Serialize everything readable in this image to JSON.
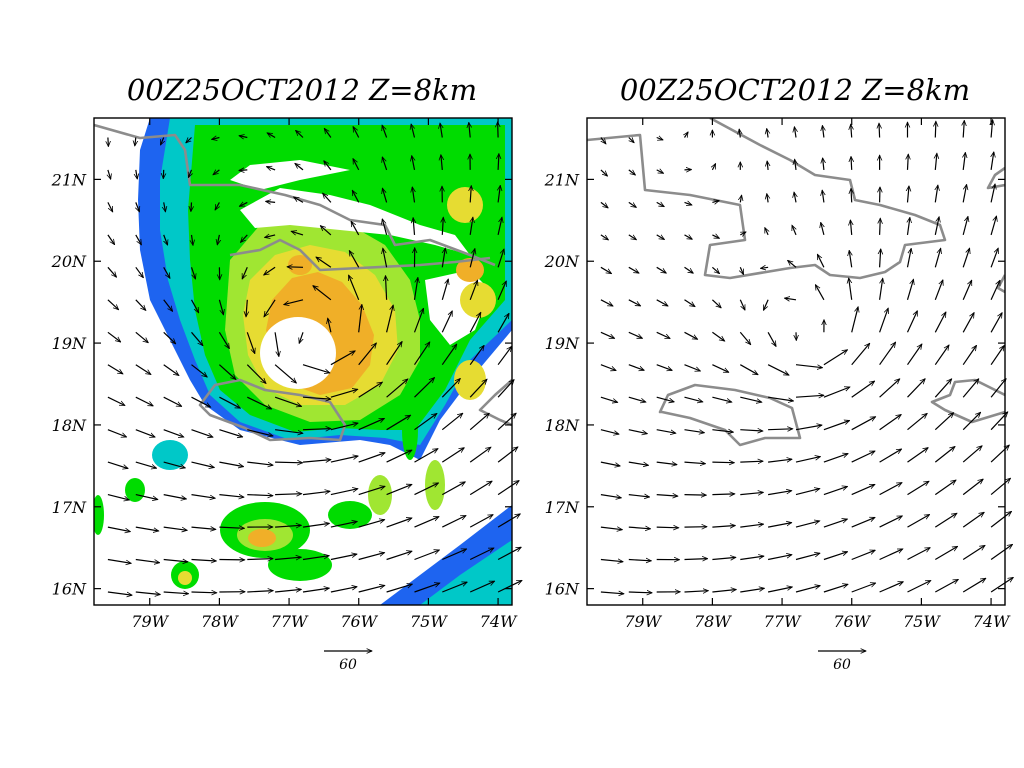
{
  "panels": [
    {
      "id": "left",
      "title": "00Z25OCT2012 Z=8km",
      "shows_shading": true,
      "reference_vector_label": "60"
    },
    {
      "id": "right",
      "title": "00Z25OCT2012 Z=8km",
      "shows_shading": false,
      "reference_vector_label": "60"
    }
  ],
  "map": {
    "lat_labels": [
      "21N",
      "20N",
      "19N",
      "18N",
      "17N",
      "16N"
    ],
    "lat_values": [
      21,
      20,
      19,
      18,
      17,
      16
    ],
    "lon_labels": [
      "79W",
      "78W",
      "77W",
      "76W",
      "75W",
      "74W"
    ],
    "lon_values": [
      -79,
      -78,
      -77,
      -76,
      -75,
      -74
    ],
    "lon_range": [
      -79.8,
      -73.8
    ],
    "lat_range": [
      15.8,
      21.75
    ],
    "storm_center": {
      "lon": -76.6,
      "lat": 19.0
    }
  },
  "colors": {
    "coastline": "#8c8c8c",
    "shade_blue": "#1e64f0",
    "shade_cyan": "#00c8c8",
    "shade_green": "#00dc00",
    "shade_lightgreen": "#a0e632",
    "shade_yellow": "#e6dc32",
    "shade_orange": "#f0af28"
  }
}
